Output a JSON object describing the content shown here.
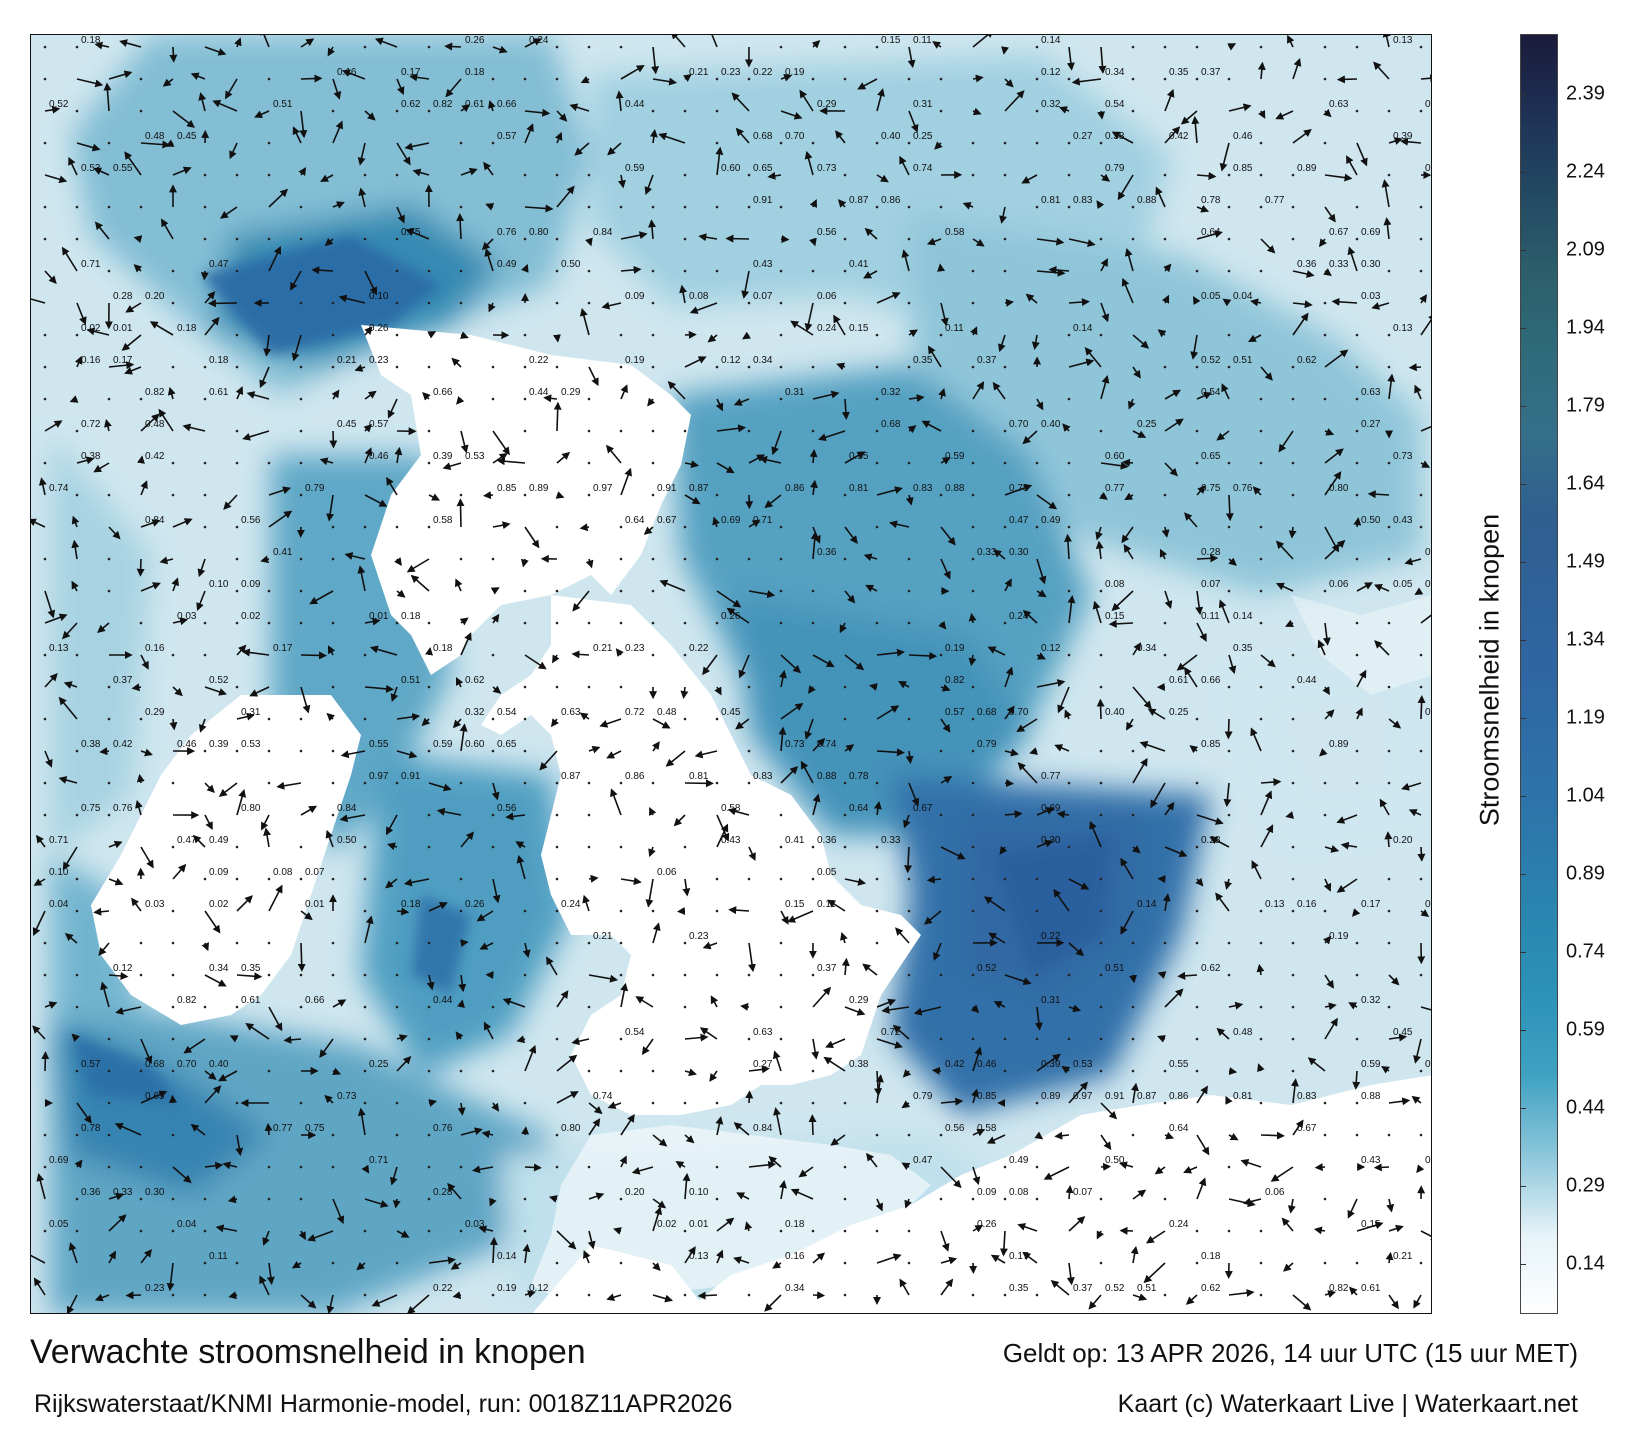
{
  "map": {
    "kind": "current-speed forecast map with current arrows",
    "region_features": [
      "sea",
      "land (white)"
    ],
    "speed_labels": [
      "0.18",
      "0.26",
      "0.24",
      "0.15",
      "0.11",
      "0.14",
      "0.13",
      "0.16",
      "0.17",
      "0.18",
      "0.21",
      "0.23",
      "0.22",
      "0.19",
      "0.12",
      "0.34",
      "0.35",
      "0.37",
      "0.52",
      "0.51",
      "0.62",
      "0.82",
      "0.61",
      "0.66",
      "0.44",
      "0.29",
      "0.31",
      "0.32",
      "0.54",
      "0.63",
      "0.72",
      "0.48",
      "0.45",
      "0.57",
      "0.68",
      "0.70",
      "0.40",
      "0.25",
      "0.27",
      "0.38",
      "0.42",
      "0.46",
      "0.39",
      "0.53",
      "0.55",
      "0.59",
      "0.60",
      "0.65",
      "0.73",
      "0.74",
      "0.79",
      "0.85",
      "0.89",
      "0.97",
      "0.91",
      "0.87",
      "0.86",
      "0.81",
      "0.83",
      "0.88",
      "0.78",
      "0.77",
      "0.75",
      "0.76",
      "0.80",
      "0.84",
      "0.56",
      "0.58",
      "0.64",
      "0.67",
      "0.69",
      "0.71",
      "0.47",
      "0.49",
      "0.50",
      "0.43",
      "0.41",
      "0.36",
      "0.33",
      "0.30",
      "0.28",
      "0.20",
      "0.10",
      "0.09",
      "0.08",
      "0.07",
      "0.06",
      "0.05",
      "0.04",
      "0.03",
      "0.02",
      "0.01"
    ]
  },
  "colorbar": {
    "label": "Stroomsnelheid in knopen",
    "ticks": [
      "2.39",
      "2.24",
      "2.09",
      "1.94",
      "1.79",
      "1.64",
      "1.49",
      "1.34",
      "1.19",
      "1.04",
      "0.89",
      "0.74",
      "0.59",
      "0.44",
      "0.29",
      "0.14"
    ],
    "colors": [
      "#1b1b3a",
      "#1e3256",
      "#234a63",
      "#2c5f6b",
      "#2f6b7a",
      "#356f8a",
      "#2f5f8f",
      "#2f6299",
      "#2f66a3",
      "#2e6fa8",
      "#2c78ab",
      "#2a86b0",
      "#2c92b8",
      "#3fa2c2",
      "#8cc6da",
      "#e6f3f8"
    ]
  },
  "title": "Verwachte stroomsnelheid in knopen",
  "subtitle": "Rijkswaterstaat/KNMI Harmonie-model, run: 0018Z11APR2026",
  "valid": "Geldt op: 13 APR 2026, 14 uur UTC (15 uur MET)",
  "credit": "Kaart (c) Waterkaart Live | Waterkaart.net"
}
